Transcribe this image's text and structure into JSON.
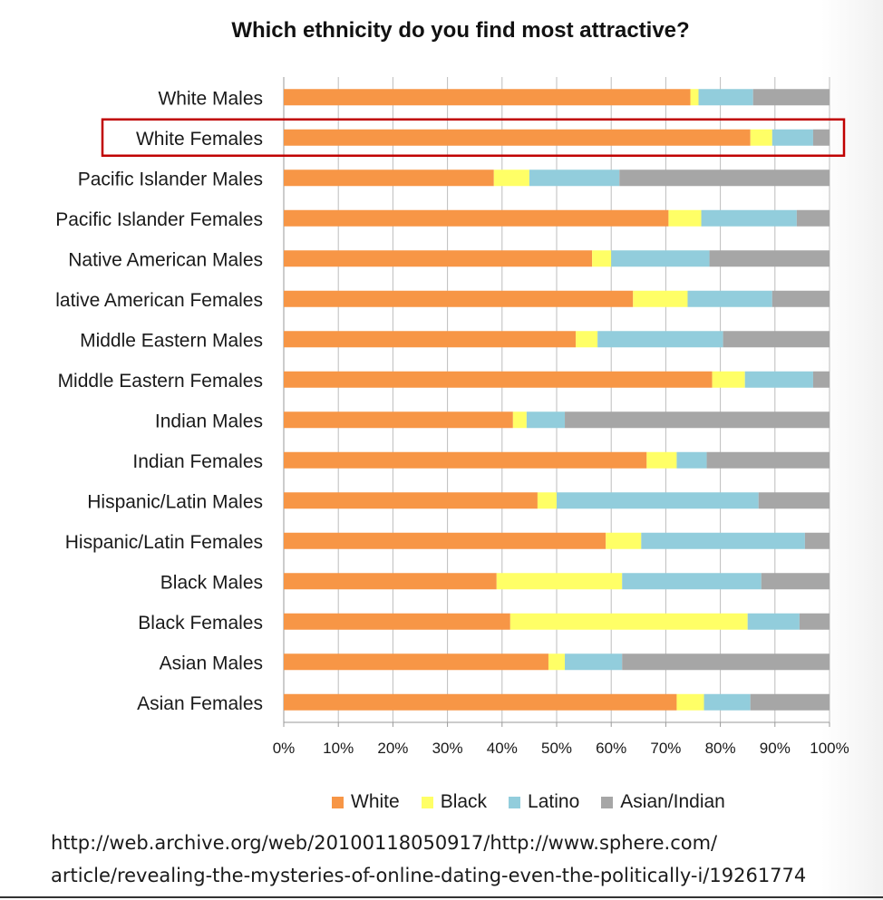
{
  "chart_data": {
    "type": "bar",
    "orientation": "horizontal",
    "stacked": true,
    "title": "Which ethnicity do you find most attractive?",
    "xlabel": "",
    "ylabel": "",
    "xlim": [
      0,
      100
    ],
    "x_ticks": [
      "0%",
      "10%",
      "20%",
      "30%",
      "40%",
      "50%",
      "60%",
      "70%",
      "80%",
      "90%",
      "100%"
    ],
    "categories": [
      "White Males",
      "White Females",
      "Pacific Islander Males",
      "Pacific Islander Females",
      "Native American Males",
      "lative American Females",
      "Middle Eastern Males",
      "Middle Eastern Females",
      "Indian Males",
      "Indian Females",
      "Hispanic/Latin Males",
      "Hispanic/Latin Females",
      "Black Males",
      "Black Females",
      "Asian Males",
      "Asian Females"
    ],
    "highlighted_category": "White Females",
    "series": [
      {
        "name": "White",
        "color": "#f79646",
        "values": [
          74.5,
          85.5,
          38.5,
          70.5,
          56.5,
          64,
          53.5,
          78.5,
          42,
          66.5,
          46.5,
          59,
          39,
          41.5,
          48.5,
          72
        ]
      },
      {
        "name": "Black",
        "color": "#ffff66",
        "values": [
          1.5,
          4,
          6.5,
          6,
          3.5,
          10,
          4,
          6,
          2.5,
          5.5,
          3.5,
          6.5,
          23,
          43.5,
          3,
          5
        ]
      },
      {
        "name": "Latino",
        "color": "#92cddc",
        "values": [
          10,
          7.5,
          16.5,
          17.5,
          18,
          15.5,
          23,
          12.5,
          7,
          5.5,
          37,
          30,
          25.5,
          9.5,
          10.5,
          8.5
        ]
      },
      {
        "name": "Asian/Indian",
        "color": "#a6a6a6",
        "values": [
          14,
          3,
          38.5,
          6,
          22,
          10.5,
          19.5,
          3,
          48.5,
          22.5,
          13,
          4.5,
          12.5,
          5.5,
          38,
          14.5
        ]
      }
    ],
    "legend_position": "bottom",
    "grid": true
  },
  "source_lines": [
    "http://web.archive.org/web/20100118050917/http://www.sphere.com/",
    "article/revealing-the-mysteries-of-online-dating-even-the-politically-i/19261774"
  ],
  "highlight_color": "#c00000"
}
